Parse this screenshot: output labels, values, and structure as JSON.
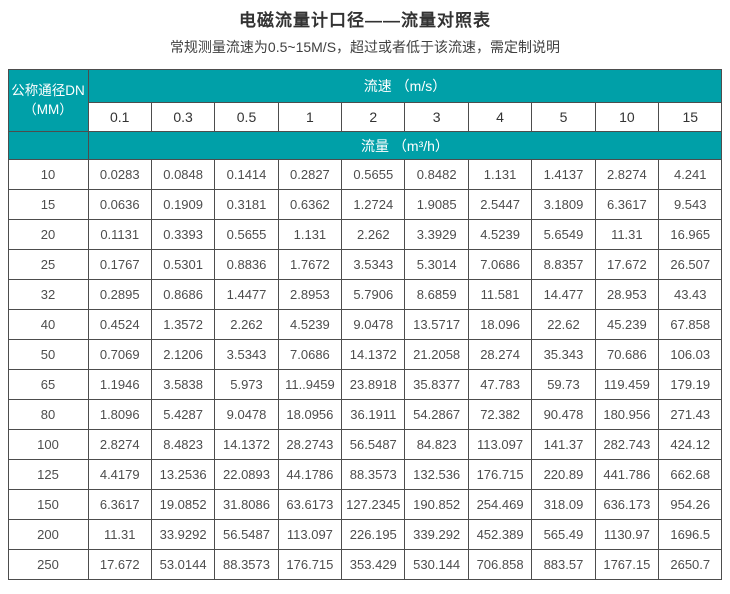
{
  "title": "电磁流量计口径——流量对照表",
  "subtitle": "常规测量流速为0.5~15M/S，超过或者低于该流速，需定制说明",
  "colors": {
    "header_teal": "#00a0a8",
    "border": "#4d4d4d",
    "text": "#4d4d4d"
  },
  "table": {
    "corner_header_line1": "公称通径DN",
    "corner_header_line2": "（MM）",
    "velocity_band_label": "流速 （m/s）",
    "flow_band_label": "流量 （m³/h）",
    "velocities": [
      "0.1",
      "0.3",
      "0.5",
      "1",
      "2",
      "3",
      "4",
      "5",
      "10",
      "15"
    ],
    "rows": [
      {
        "dn": "10",
        "values": [
          "0.0283",
          "0.0848",
          "0.1414",
          "0.2827",
          "0.5655",
          "0.8482",
          "1.131",
          "1.4137",
          "2.8274",
          "4.241"
        ]
      },
      {
        "dn": "15",
        "values": [
          "0.0636",
          "0.1909",
          "0.3181",
          "0.6362",
          "1.2724",
          "1.9085",
          "2.5447",
          "3.1809",
          "6.3617",
          "9.543"
        ]
      },
      {
        "dn": "20",
        "values": [
          "0.1131",
          "0.3393",
          "0.5655",
          "1.131",
          "2.262",
          "3.3929",
          "4.5239",
          "5.6549",
          "11.31",
          "16.965"
        ]
      },
      {
        "dn": "25",
        "values": [
          "0.1767",
          "0.5301",
          "0.8836",
          "1.7672",
          "3.5343",
          "5.3014",
          "7.0686",
          "8.8357",
          "17.672",
          "26.507"
        ]
      },
      {
        "dn": "32",
        "values": [
          "0.2895",
          "0.8686",
          "1.4477",
          "2.8953",
          "5.7906",
          "8.6859",
          "11.581",
          "14.477",
          "28.953",
          "43.43"
        ]
      },
      {
        "dn": "40",
        "values": [
          "0.4524",
          "1.3572",
          "2.262",
          "4.5239",
          "9.0478",
          "13.5717",
          "18.096",
          "22.62",
          "45.239",
          "67.858"
        ]
      },
      {
        "dn": "50",
        "values": [
          "0.7069",
          "2.1206",
          "3.5343",
          "7.0686",
          "14.1372",
          "21.2058",
          "28.274",
          "35.343",
          "70.686",
          "106.03"
        ]
      },
      {
        "dn": "65",
        "values": [
          "1.1946",
          "3.5838",
          "5.973",
          "11..9459",
          "23.8918",
          "35.8377",
          "47.783",
          "59.73",
          "119.459",
          "179.19"
        ]
      },
      {
        "dn": "80",
        "values": [
          "1.8096",
          "5.4287",
          "9.0478",
          "18.0956",
          "36.1911",
          "54.2867",
          "72.382",
          "90.478",
          "180.956",
          "271.43"
        ]
      },
      {
        "dn": "100",
        "values": [
          "2.8274",
          "8.4823",
          "14.1372",
          "28.2743",
          "56.5487",
          "84.823",
          "113.097",
          "141.37",
          "282.743",
          "424.12"
        ]
      },
      {
        "dn": "125",
        "values": [
          "4.4179",
          "13.2536",
          "22.0893",
          "44.1786",
          "88.3573",
          "132.536",
          "176.715",
          "220.89",
          "441.786",
          "662.68"
        ]
      },
      {
        "dn": "150",
        "values": [
          "6.3617",
          "19.0852",
          "31.8086",
          "63.6173",
          "127.2345",
          "190.852",
          "254.469",
          "318.09",
          "636.173",
          "954.26"
        ]
      },
      {
        "dn": "200",
        "values": [
          "11.31",
          "33.9292",
          "56.5487",
          "113.097",
          "226.195",
          "339.292",
          "452.389",
          "565.49",
          "1130.97",
          "1696.5"
        ]
      },
      {
        "dn": "250",
        "values": [
          "17.672",
          "53.0144",
          "88.3573",
          "176.715",
          "353.429",
          "530.144",
          "706.858",
          "883.57",
          "1767.15",
          "2650.7"
        ]
      }
    ]
  }
}
